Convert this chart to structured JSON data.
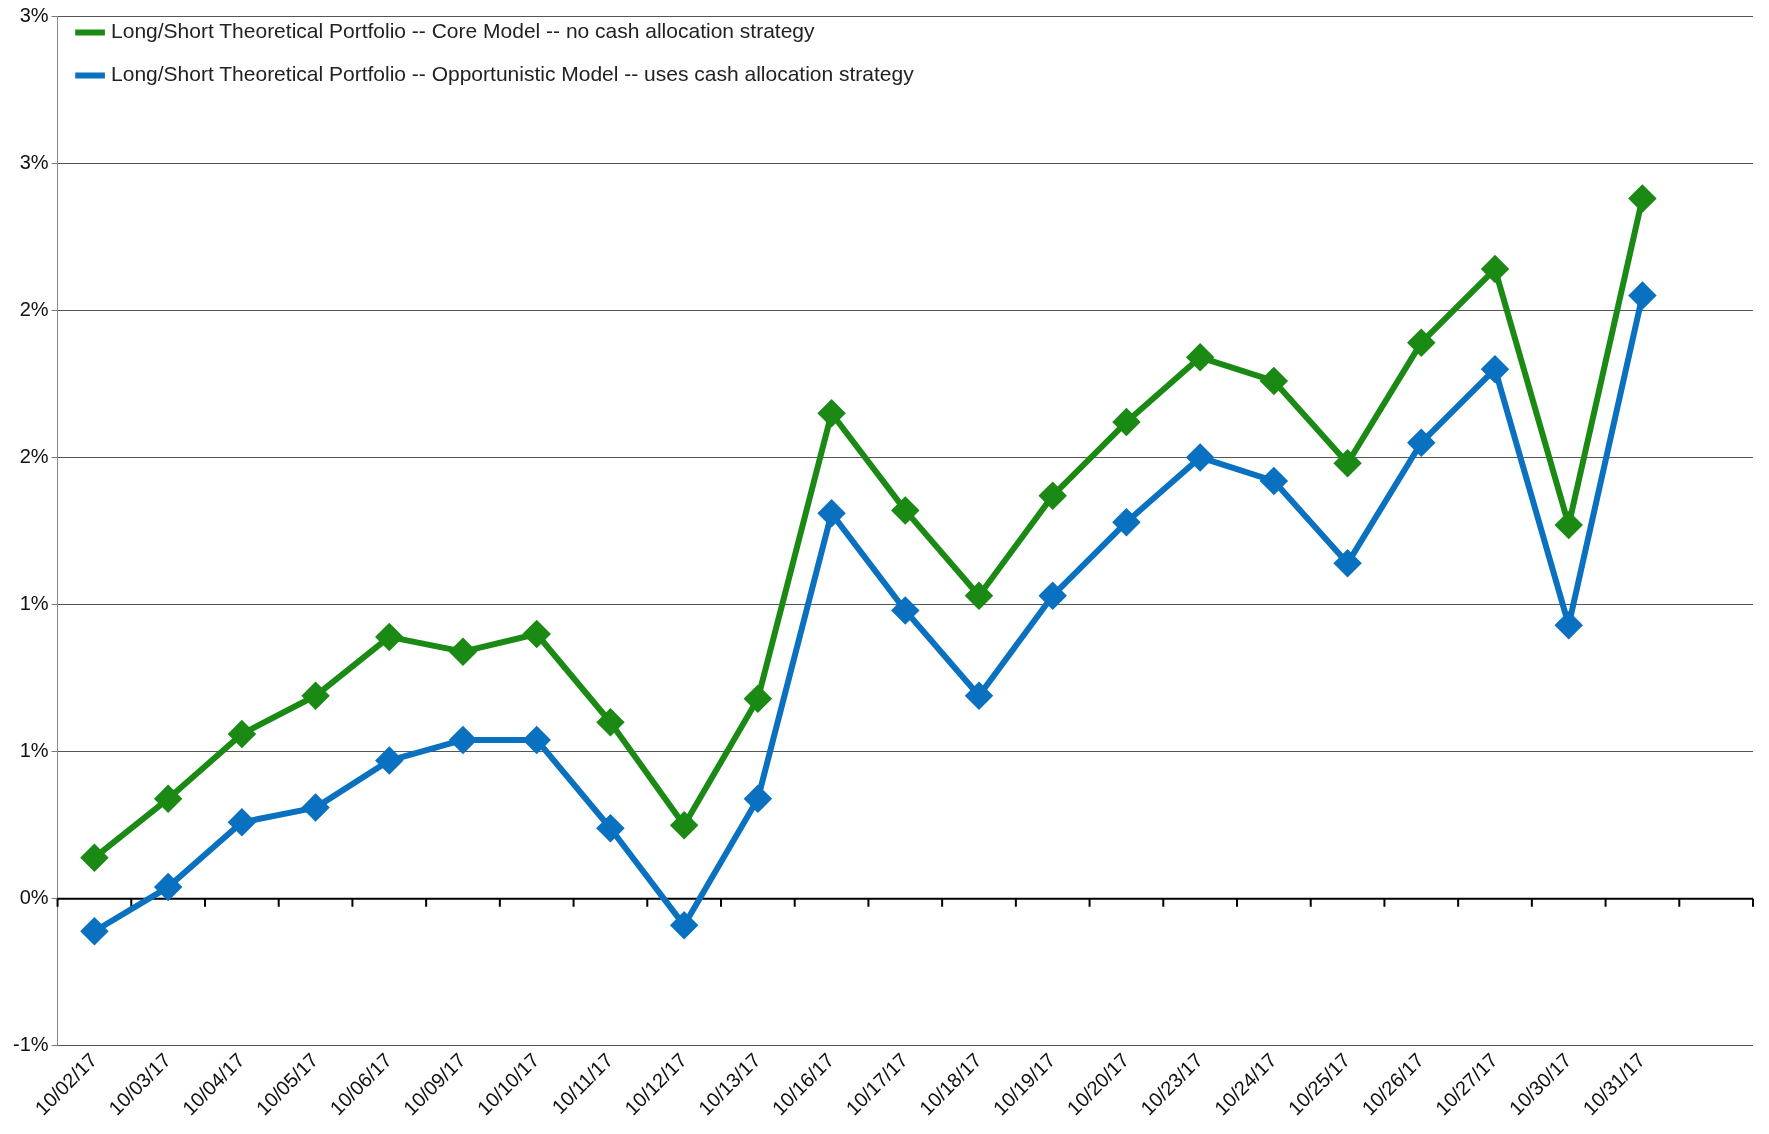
{
  "chart_data": {
    "type": "line",
    "categories": [
      "10/02/17",
      "10/03/17",
      "10/04/17",
      "10/05/17",
      "10/06/17",
      "10/09/17",
      "10/10/17",
      "10/11/17",
      "10/12/17",
      "10/13/17",
      "10/16/17",
      "10/17/17",
      "10/18/17",
      "10/19/17",
      "10/20/17",
      "10/23/17",
      "10/24/17",
      "10/25/17",
      "10/26/17",
      "10/27/17",
      "10/30/17",
      "10/31/17",
      null
    ],
    "series": [
      {
        "name": "Long/Short Theoretical Portfolio -- Core Model -- no cash allocation strategy",
        "color": "#1a8a14",
        "values": [
          0.14,
          0.34,
          0.56,
          0.69,
          0.89,
          0.84,
          0.9,
          0.6,
          0.25,
          0.68,
          1.65,
          1.32,
          1.03,
          1.37,
          1.62,
          1.84,
          1.76,
          1.48,
          1.89,
          2.14,
          1.27,
          2.38,
          null
        ]
      },
      {
        "name": "Long/Short Theoretical Portfolio -- Opportunistic Model -- uses cash allocation strategy",
        "color": "#0a70c0",
        "values": [
          -0.11,
          0.04,
          0.26,
          0.31,
          0.47,
          0.54,
          0.54,
          0.24,
          -0.09,
          0.34,
          1.31,
          0.98,
          0.69,
          1.03,
          1.28,
          1.5,
          1.42,
          1.14,
          1.55,
          1.8,
          0.93,
          2.05,
          null
        ]
      }
    ],
    "ylim": [
      -0.5,
      3
    ],
    "yticks": [
      {
        "value": -0.5,
        "label": "-1%"
      },
      {
        "value": 0,
        "label": "0%"
      },
      {
        "value": 0.5,
        "label": "1%"
      },
      {
        "value": 1,
        "label": "1%"
      },
      {
        "value": 1.5,
        "label": "2%"
      },
      {
        "value": 2,
        "label": "2%"
      },
      {
        "value": 2.5,
        "label": "3%"
      },
      {
        "value": 3,
        "label": "3%"
      }
    ],
    "grid": "y",
    "legend": "top left",
    "marker": "diamond",
    "line_style": "solid",
    "ref_lines": [
      {
        "axis": "y",
        "value": 0,
        "color": "#000000"
      }
    ]
  }
}
